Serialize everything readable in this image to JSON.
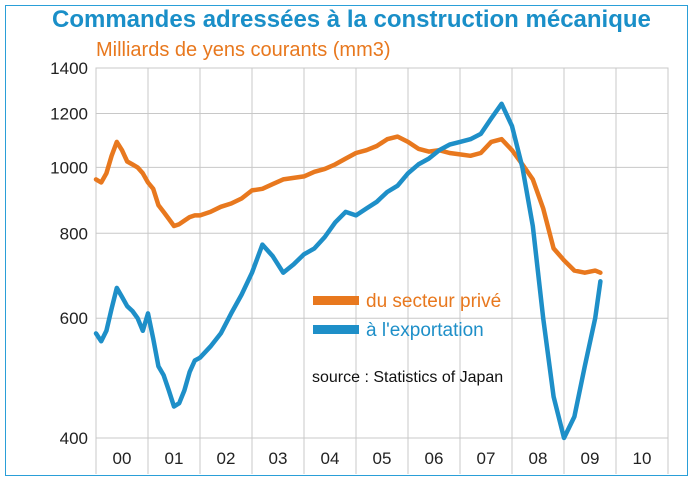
{
  "title": "Commandes adressées à la construction mécanique",
  "subtitle": "Milliards de yens courants (mm3)",
  "source": "source : Statistics of Japan",
  "colors": {
    "title": "#1a8fc8",
    "prive": "#e8781e",
    "export": "#1e8fc8",
    "grid": "#c8c8c8",
    "frame": "#2a9fd8"
  },
  "chart_data": {
    "type": "line",
    "yscale": "log",
    "ylim": [
      400,
      1400
    ],
    "xlim": [
      2000,
      2011
    ],
    "yticks": [
      400,
      600,
      800,
      1000,
      1200,
      1400
    ],
    "xtick_labels": [
      "00",
      "01",
      "02",
      "03",
      "04",
      "05",
      "06",
      "07",
      "08",
      "09",
      "10"
    ],
    "grid": true,
    "legend": "middle-right",
    "series": [
      {
        "name": "du secteur privé",
        "color": "#e8781e",
        "x": [
          2000.0,
          2000.1,
          2000.2,
          2000.3,
          2000.4,
          2000.5,
          2000.6,
          2000.7,
          2000.8,
          2000.9,
          2001.0,
          2001.1,
          2001.2,
          2001.3,
          2001.4,
          2001.5,
          2001.6,
          2001.7,
          2001.8,
          2001.9,
          2002.0,
          2002.2,
          2002.4,
          2002.6,
          2002.8,
          2003.0,
          2003.2,
          2003.4,
          2003.6,
          2003.8,
          2004.0,
          2004.2,
          2004.4,
          2004.6,
          2004.8,
          2005.0,
          2005.2,
          2005.4,
          2005.6,
          2005.8,
          2006.0,
          2006.2,
          2006.4,
          2006.6,
          2006.8,
          2007.0,
          2007.2,
          2007.4,
          2007.6,
          2007.8,
          2008.0,
          2008.2,
          2008.4,
          2008.6,
          2008.8,
          2009.0,
          2009.2,
          2009.4,
          2009.6,
          2009.7
        ],
        "values": [
          960,
          950,
          980,
          1040,
          1090,
          1060,
          1020,
          1010,
          1000,
          980,
          950,
          930,
          880,
          860,
          840,
          820,
          825,
          835,
          845,
          850,
          850,
          860,
          875,
          885,
          900,
          925,
          930,
          945,
          960,
          965,
          970,
          985,
          995,
          1010,
          1030,
          1050,
          1060,
          1075,
          1100,
          1110,
          1090,
          1065,
          1055,
          1060,
          1050,
          1045,
          1040,
          1050,
          1090,
          1100,
          1060,
          1010,
          960,
          870,
          760,
          730,
          705,
          700,
          705,
          700
        ]
      },
      {
        "name": "à l'exportation",
        "color": "#1e8fc8",
        "x": [
          2000.0,
          2000.1,
          2000.2,
          2000.3,
          2000.4,
          2000.5,
          2000.6,
          2000.7,
          2000.8,
          2000.9,
          2001.0,
          2001.1,
          2001.2,
          2001.3,
          2001.4,
          2001.5,
          2001.6,
          2001.7,
          2001.8,
          2001.9,
          2002.0,
          2002.2,
          2002.4,
          2002.6,
          2002.8,
          2003.0,
          2003.2,
          2003.4,
          2003.6,
          2003.8,
          2004.0,
          2004.2,
          2004.4,
          2004.6,
          2004.8,
          2005.0,
          2005.2,
          2005.4,
          2005.6,
          2005.8,
          2006.0,
          2006.2,
          2006.4,
          2006.6,
          2006.8,
          2007.0,
          2007.2,
          2007.4,
          2007.6,
          2007.8,
          2008.0,
          2008.2,
          2008.4,
          2008.6,
          2008.8,
          2009.0,
          2009.2,
          2009.4,
          2009.6,
          2009.7
        ],
        "values": [
          570,
          555,
          575,
          620,
          665,
          645,
          625,
          615,
          600,
          575,
          610,
          560,
          510,
          495,
          470,
          445,
          450,
          470,
          500,
          520,
          525,
          545,
          570,
          610,
          650,
          700,
          770,
          740,
          700,
          720,
          745,
          760,
          790,
          830,
          860,
          850,
          870,
          890,
          920,
          940,
          980,
          1010,
          1030,
          1060,
          1080,
          1090,
          1100,
          1120,
          1180,
          1240,
          1150,
          1000,
          820,
          600,
          460,
          400,
          430,
          510,
          600,
          680
        ]
      }
    ]
  }
}
